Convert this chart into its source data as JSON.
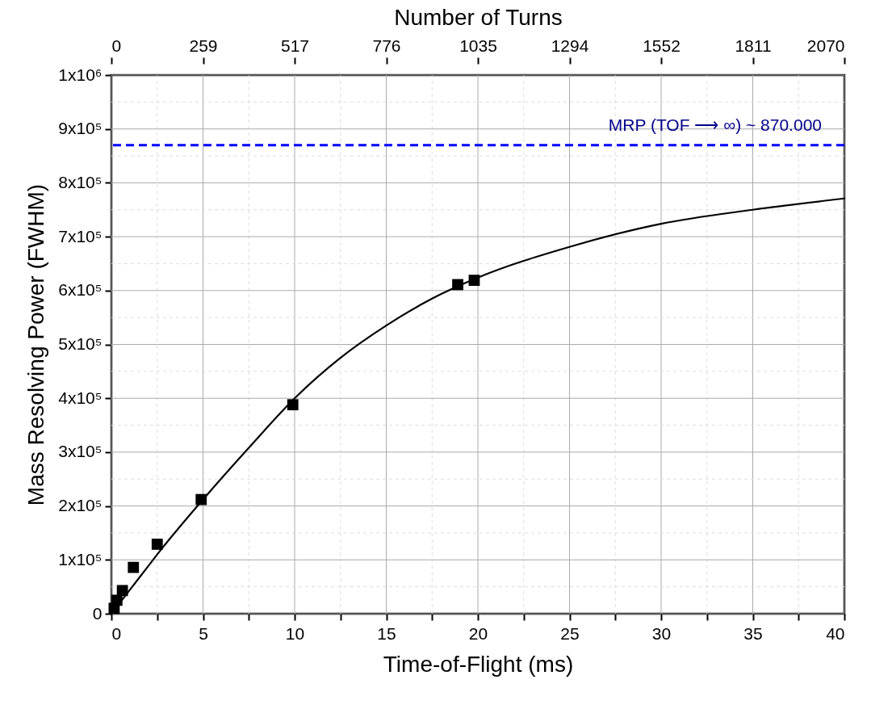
{
  "chart_data": {
    "type": "scatter",
    "xlabel": "Time-of-Flight (ms)",
    "ylabel": "Mass Resolving Power (FWHM)",
    "x2label": "Number of Turns",
    "series": [
      {
        "color": "#000000",
        "marker": "square",
        "x": [
          0.15,
          0.3,
          0.6,
          1.2,
          2.5,
          4.9,
          9.9,
          18.9,
          19.8
        ],
        "values": [
          10000,
          25000,
          43000,
          86000,
          129000,
          212000,
          388000,
          611000,
          619000
        ]
      },
      {
        "type": "line",
        "color": "#000000",
        "marker": "none",
        "line_style": "solid",
        "x": [
          0,
          0.5,
          1,
          2,
          2.5,
          5,
          7.5,
          10,
          12.5,
          15,
          17.5,
          20,
          25,
          30,
          35,
          40
        ],
        "values": [
          0,
          22000,
          44000,
          88000,
          110000,
          212000,
          308000,
          400000,
          475000,
          535000,
          585000,
          624000,
          681000,
          724000,
          750000,
          771000
        ]
      }
    ],
    "xlim": [
      0,
      40
    ],
    "xticks": [
      0,
      {
        "value": 2.5,
        "label": null
      },
      5,
      {
        "value": 7.5,
        "label": null
      },
      10,
      {
        "value": 12.5,
        "label": null
      },
      15,
      {
        "value": 17.5,
        "label": null
      },
      20,
      {
        "value": 22.5,
        "label": null
      },
      25,
      {
        "value": 27.5,
        "label": null
      },
      30,
      {
        "value": 32.5,
        "label": null
      },
      35,
      {
        "value": 37.5,
        "label": null
      },
      40
    ],
    "x2lim": [
      0,
      2070
    ],
    "x2ticks": [
      0,
      {
        "value": 258.75,
        "label": "259"
      },
      {
        "value": 517.5,
        "label": "517"
      },
      {
        "value": 776.25,
        "label": "776"
      },
      1035,
      {
        "value": 1293.75,
        "label": "1294"
      },
      {
        "value": 1552.5,
        "label": "1552"
      },
      {
        "value": 1811.25,
        "label": "1811"
      },
      2070
    ],
    "ylim": [
      0,
      1000000
    ],
    "yticks": [
      0,
      {
        "value": 50000,
        "label": null
      },
      {
        "value": 100000,
        "label": "1x10⁵"
      },
      {
        "value": 150000,
        "label": null
      },
      {
        "value": 200000,
        "label": "2x10⁵"
      },
      {
        "value": 250000,
        "label": null
      },
      {
        "value": 300000,
        "label": "3x10⁵"
      },
      {
        "value": 350000,
        "label": null
      },
      {
        "value": 400000,
        "label": "4x10⁵"
      },
      {
        "value": 450000,
        "label": null
      },
      {
        "value": 500000,
        "label": "5x10⁵"
      },
      {
        "value": 550000,
        "label": null
      },
      {
        "value": 600000,
        "label": "6x10⁵"
      },
      {
        "value": 650000,
        "label": null
      },
      {
        "value": 700000,
        "label": "7x10⁵"
      },
      {
        "value": 750000,
        "label": null
      },
      {
        "value": 800000,
        "label": "8x10⁵"
      },
      {
        "value": 850000,
        "label": null
      },
      {
        "value": 900000,
        "label": "9x10⁵"
      },
      {
        "value": 950000,
        "label": null
      },
      {
        "value": 1000000,
        "label": "1x10⁶"
      }
    ],
    "grid": true,
    "ref_lines": [
      {
        "axis": "y",
        "value": 870000,
        "label": "MRP (TOF ⟶ ∞) ~ 870.000",
        "color": "#0000ff",
        "line_style": "dashed"
      }
    ]
  }
}
